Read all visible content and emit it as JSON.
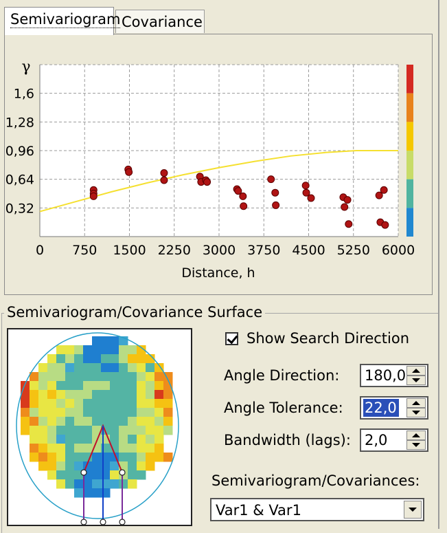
{
  "tabs": [
    {
      "label": "Semivariogram",
      "active": true
    },
    {
      "label": "Covariance",
      "active": false
    }
  ],
  "chart_data": {
    "type": "scatter",
    "ylabel_symbol": "γ",
    "xlabel": "Distance, h",
    "x_ticks": [
      "0",
      "750",
      "1500",
      "2250",
      "3000",
      "3750",
      "4500",
      "5250",
      "6000"
    ],
    "y_ticks": [
      "0,32",
      "0,64",
      "0,96",
      "1,28",
      "1,6"
    ],
    "xlim": [
      0,
      6000
    ],
    "ylim": [
      0,
      1.92
    ],
    "grid": true,
    "points": [
      {
        "x": 900,
        "y": 0.52
      },
      {
        "x": 900,
        "y": 0.48
      },
      {
        "x": 900,
        "y": 0.45
      },
      {
        "x": 1480,
        "y": 0.75
      },
      {
        "x": 1490,
        "y": 0.72
      },
      {
        "x": 2080,
        "y": 0.71
      },
      {
        "x": 2080,
        "y": 0.63
      },
      {
        "x": 2680,
        "y": 0.67
      },
      {
        "x": 2700,
        "y": 0.61
      },
      {
        "x": 2780,
        "y": 0.63
      },
      {
        "x": 2800,
        "y": 0.61
      },
      {
        "x": 3300,
        "y": 0.53
      },
      {
        "x": 3320,
        "y": 0.51
      },
      {
        "x": 3400,
        "y": 0.45
      },
      {
        "x": 3410,
        "y": 0.34
      },
      {
        "x": 3870,
        "y": 0.64
      },
      {
        "x": 3940,
        "y": 0.49
      },
      {
        "x": 3950,
        "y": 0.35
      },
      {
        "x": 4450,
        "y": 0.57
      },
      {
        "x": 4460,
        "y": 0.49
      },
      {
        "x": 4540,
        "y": 0.43
      },
      {
        "x": 5080,
        "y": 0.44
      },
      {
        "x": 5100,
        "y": 0.33
      },
      {
        "x": 5150,
        "y": 0.41
      },
      {
        "x": 5170,
        "y": 0.14
      },
      {
        "x": 5680,
        "y": 0.46
      },
      {
        "x": 5700,
        "y": 0.16
      },
      {
        "x": 5760,
        "y": 0.52
      },
      {
        "x": 5780,
        "y": 0.13
      }
    ],
    "model_curve": [
      {
        "x": 0,
        "y": 0.28
      },
      {
        "x": 600,
        "y": 0.39
      },
      {
        "x": 1200,
        "y": 0.5
      },
      {
        "x": 1800,
        "y": 0.6
      },
      {
        "x": 2400,
        "y": 0.69
      },
      {
        "x": 3000,
        "y": 0.77
      },
      {
        "x": 3600,
        "y": 0.84
      },
      {
        "x": 4200,
        "y": 0.9
      },
      {
        "x": 4800,
        "y": 0.94
      },
      {
        "x": 5300,
        "y": 0.96
      },
      {
        "x": 6000,
        "y": 0.96
      }
    ],
    "colorbar": [
      "#d42a22",
      "#e8821c",
      "#f5c800",
      "#c8dc68",
      "#50b4a0",
      "#2088d0"
    ],
    "point_color": "#b01414",
    "curve_color": "#f5e030"
  },
  "surface": {
    "title": "Semivariogram/Covariance Surface",
    "palette": {
      "1": "#1f7fd0",
      "2": "#3fa6d0",
      "3": "#54b4a4",
      "4": "#b8dc84",
      "5": "#e8e644",
      "6": "#f5c212",
      "7": "#ee8c1c",
      "8": "#d83a1c"
    },
    "grid": [
      "0000000001112000000",
      "0000055411114460000",
      "0000534311334666000",
      "0005442333113453600",
      "0074443333333345770",
      "0854533344433354670",
      "0865654443333354870",
      "0865545433333355660",
      "0745554433333344570",
      "0674543443333455460",
      "0655433334334445540",
      "0055423334434354500",
      "0076553444334455600",
      "0067653331113346670",
      "0006643211124356000",
      "0000533311154330000",
      "0000053112223500000",
      "0000000211100000000"
    ],
    "lattice": [
      1,
      1.6,
      2
    ],
    "ellipse_color": "#28a0c8"
  },
  "controls": {
    "show_search_direction": {
      "label": "Show Search Direction",
      "checked": true
    },
    "angle_direction": {
      "label": "Angle Direction:",
      "value": "180,0"
    },
    "angle_tolerance": {
      "label": "Angle Tolerance:",
      "value": "22,0"
    },
    "bandwidth": {
      "label": "Bandwidth (lags):",
      "value": "2,0"
    },
    "semivariogram_covariances": {
      "label": "Semivariogram/Covariances:",
      "value": "Var1 & Var1"
    }
  }
}
